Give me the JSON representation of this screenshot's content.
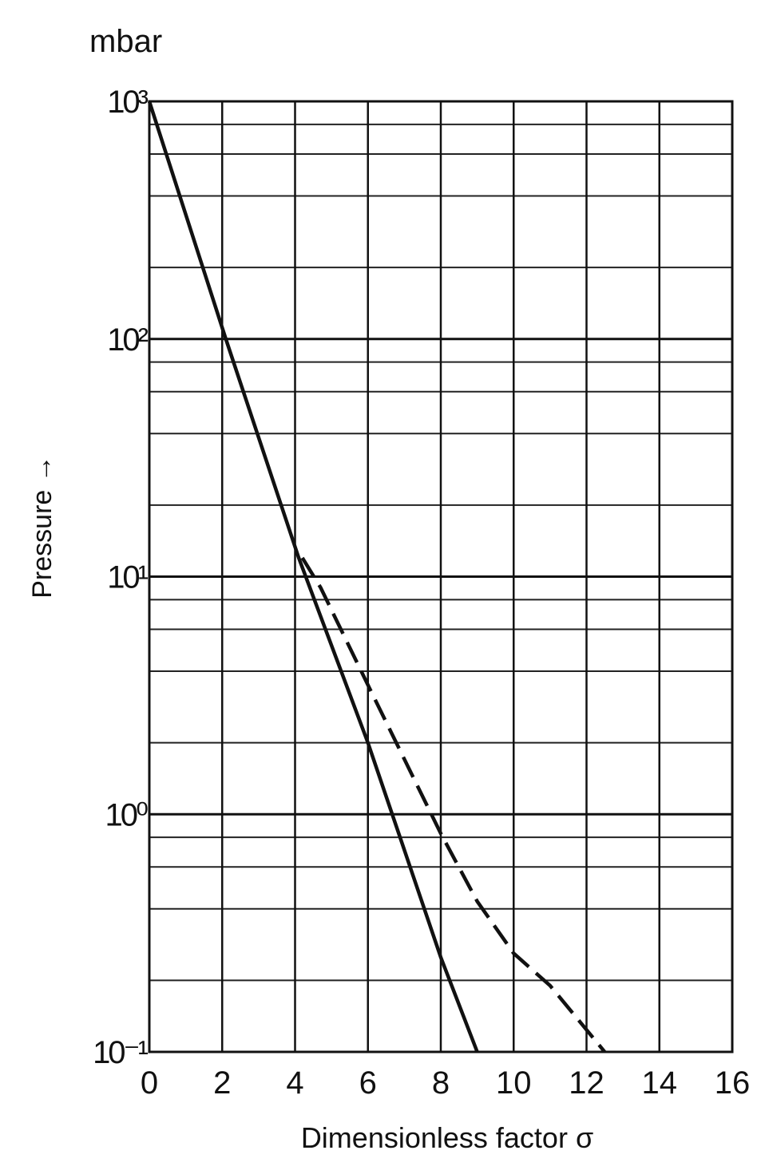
{
  "chart_data": {
    "type": "line",
    "unit_label": "mbar",
    "ylabel": "Pressure →",
    "xlabel": "Dimensionless factor σ",
    "log_y": true,
    "grid": true,
    "xlim": [
      0,
      16
    ],
    "xticks": [
      0,
      2,
      4,
      6,
      8,
      10,
      12,
      14,
      16
    ],
    "ylim": [
      0.1,
      1000
    ],
    "yticks": [
      {
        "value": 0.1,
        "label": "10⁻¹"
      },
      {
        "value": 1,
        "label": "10⁰"
      },
      {
        "value": 10,
        "label": "10¹"
      },
      {
        "value": 100,
        "label": "10²"
      },
      {
        "value": 1000,
        "label": "10³"
      }
    ],
    "yminor": [
      0.2,
      0.4,
      0.6,
      0.8,
      2,
      4,
      6,
      8,
      20,
      40,
      60,
      80,
      200,
      400,
      600,
      800
    ],
    "series": [
      {
        "color": "#111111",
        "dashed": false,
        "x": [
          0,
          2.1,
          4.1,
          6,
          8,
          9
        ],
        "values": [
          1000,
          100,
          12,
          2,
          0.25,
          0.1
        ]
      },
      {
        "color": "#111111",
        "dashed": true,
        "x": [
          4.2,
          4.7,
          6,
          8,
          9,
          10,
          11,
          12.5
        ],
        "values": [
          12,
          9,
          3.5,
          0.83,
          0.43,
          0.26,
          0.19,
          0.1
        ]
      }
    ]
  }
}
